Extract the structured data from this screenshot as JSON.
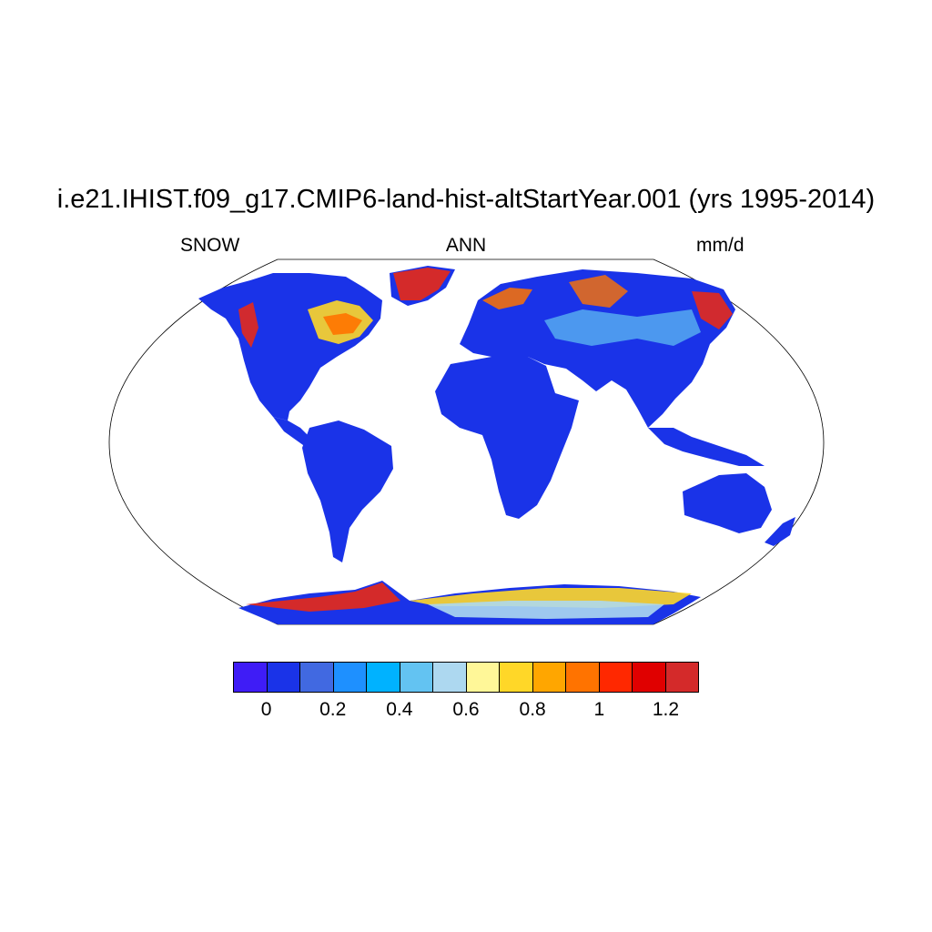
{
  "title": "i.e21.IHIST.f09_g17.CMIP6-land-hist-altStartYear.001 (yrs 1995-2014)",
  "subtitle_left": "SNOW",
  "subtitle_center": "ANN",
  "subtitle_right": "mm/d",
  "colors": {
    "land_low": "#1a33e8",
    "ocean": "#ffffff",
    "outline": "#000000"
  },
  "colorbar": {
    "colors": [
      "#3f1cf6",
      "#1a33e8",
      "#4169e1",
      "#1e90ff",
      "#00b2ff",
      "#63c3f2",
      "#add8f0",
      "#fff798",
      "#ffd728",
      "#ffa600",
      "#ff7300",
      "#ff2800",
      "#e00000",
      "#d42a2a"
    ],
    "labels": [
      "0",
      "0.2",
      "0.4",
      "0.6",
      "0.8",
      "1",
      "1.2"
    ]
  }
}
